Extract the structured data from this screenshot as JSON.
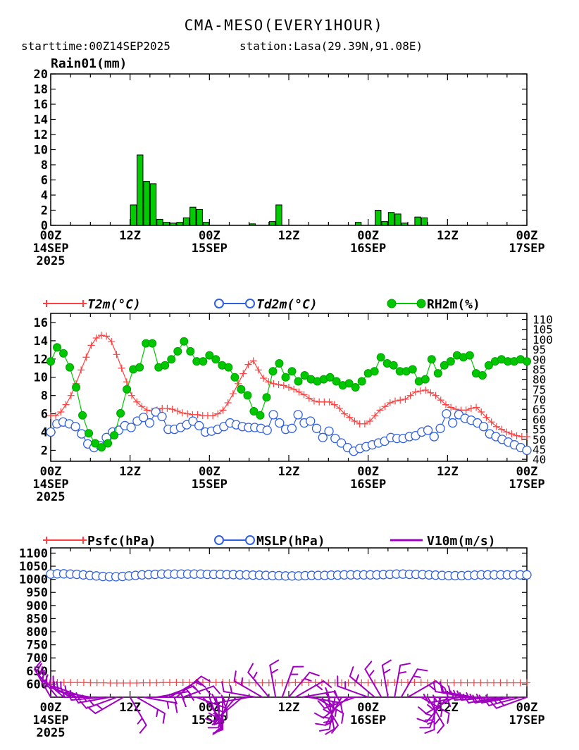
{
  "header": {
    "title": "CMA-MESO(EVERY1HOUR)",
    "starttime": "starttime:00Z14SEP2025",
    "station": "station:Lasa(29.39N,91.08E)"
  },
  "colors": {
    "rain": "#00cc00",
    "t2m": "#ff4040",
    "td2m": "#3060e0",
    "rh2m": "#00c800",
    "psfc": "#ff4040",
    "mslp": "#3060e0",
    "wind": "#a000c0"
  },
  "time_axis": {
    "ticks": [
      {
        "hour": 0,
        "lines": [
          "00Z",
          "14SEP",
          "2025"
        ]
      },
      {
        "hour": 12,
        "lines": [
          "12Z"
        ]
      },
      {
        "hour": 24,
        "lines": [
          "00Z",
          "15SEP"
        ]
      },
      {
        "hour": 36,
        "lines": [
          "12Z"
        ]
      },
      {
        "hour": 48,
        "lines": [
          "00Z",
          "16SEP"
        ]
      },
      {
        "hour": 60,
        "lines": [
          "12Z"
        ]
      },
      {
        "hour": 72,
        "lines": [
          "00Z",
          "17SEP"
        ]
      }
    ]
  },
  "chart_data": [
    {
      "type": "bar",
      "ylabel": "Rain01(mm)",
      "ylim": [
        0,
        20
      ],
      "yticks": [
        0,
        2,
        4,
        6,
        8,
        10,
        12,
        14,
        16,
        18,
        20
      ],
      "xlim": [
        0,
        72
      ],
      "x_hours": [
        12,
        13,
        14,
        15,
        16,
        17,
        18,
        19,
        20,
        21,
        22,
        23,
        24,
        30,
        33,
        34,
        46,
        49,
        50,
        51,
        52,
        53,
        55,
        56
      ],
      "values": [
        2.7,
        9.3,
        5.8,
        5.5,
        0.8,
        0.4,
        0.3,
        0.4,
        1.0,
        2.4,
        2.1,
        0.4,
        0.0,
        0.2,
        0.5,
        2.7,
        0.4,
        2.0,
        0.5,
        1.7,
        1.5,
        0.3,
        1.1,
        1.0
      ]
    },
    {
      "type": "line",
      "xlim": [
        0,
        72
      ],
      "left_axis": {
        "ylim": [
          0.8,
          17.0
        ],
        "ticks": [
          2,
          4,
          6,
          8,
          10,
          12,
          14,
          16
        ]
      },
      "right_axis": {
        "ylim": [
          39,
          113
        ],
        "ticks": [
          40,
          45,
          50,
          55,
          60,
          65,
          70,
          75,
          80,
          85,
          90,
          95,
          100,
          105,
          110
        ]
      },
      "series": [
        {
          "name": "T2m(°C)",
          "axis": "left",
          "marker": "plus",
          "values": [
            5.8,
            5.8,
            6.2,
            7.0,
            8.0,
            9.3,
            10.8,
            12.2,
            13.5,
            14.3,
            14.6,
            14.5,
            13.9,
            12.5,
            11.0,
            9.5,
            8.0,
            7.3,
            6.8,
            6.4,
            6.3,
            6.4,
            6.6,
            6.6,
            6.5,
            6.3,
            6.1,
            6.0,
            5.9,
            5.9,
            5.8,
            5.8,
            5.8,
            6.0,
            6.4,
            7.2,
            8.2,
            9.3,
            10.4,
            11.4,
            11.8,
            10.8,
            9.9,
            9.5,
            9.3,
            9.2,
            9.1,
            8.9,
            8.7,
            8.4,
            8.1,
            7.7,
            7.4,
            7.3,
            7.3,
            7.3,
            7.0,
            6.6,
            6.0,
            5.6,
            5.2,
            4.9,
            4.9,
            5.2,
            5.8,
            6.4,
            6.8,
            7.2,
            7.4,
            7.5,
            7.6,
            8.0,
            8.4,
            8.5,
            8.6,
            8.3,
            8.0,
            7.5,
            7.0,
            6.7,
            6.5,
            6.4,
            6.4,
            6.6,
            6.7,
            6.2,
            5.6,
            5.1,
            4.6,
            4.3,
            4.0,
            3.8,
            3.6,
            3.5,
            3.5
          ]
        },
        {
          "name": "Td2m(°C)",
          "axis": "left",
          "marker": "circle",
          "values": [
            4.0,
            4.9,
            5.1,
            4.9,
            4.6,
            3.8,
            2.7,
            2.3,
            2.5,
            3.4,
            4.0,
            4.2,
            4.7,
            4.5,
            5.2,
            5.6,
            5.0,
            6.2,
            5.7,
            4.3,
            4.3,
            4.5,
            4.8,
            5.2,
            4.7,
            4.0,
            4.1,
            4.3,
            4.6,
            5.0,
            4.8,
            4.6,
            4.5,
            4.5,
            4.4,
            4.2,
            5.9,
            5.0,
            4.3,
            4.4,
            5.9,
            5.0,
            5.2,
            4.4,
            3.4,
            4.1,
            3.3,
            2.8,
            2.3,
            1.9,
            2.2,
            2.4,
            2.6,
            2.8,
            3.0,
            3.4,
            3.3,
            3.3,
            3.5,
            3.6,
            4.0,
            4.2,
            3.5,
            4.4,
            6.0,
            5.0,
            5.9,
            5.5,
            5.3,
            5.0,
            4.6,
            3.8,
            3.5,
            3.2,
            2.9,
            2.6,
            2.3,
            2.0
          ]
        },
        {
          "name": "RH2m(%)",
          "axis": "right",
          "marker": "dot",
          "values": [
            89,
            96,
            93,
            86,
            76,
            62,
            53,
            48,
            46,
            48,
            52,
            63,
            75,
            85,
            86,
            98,
            98,
            86,
            87,
            90,
            94,
            99,
            94,
            89,
            89,
            92,
            90,
            87,
            86,
            81,
            75,
            72,
            64,
            62,
            71,
            84,
            88,
            81,
            84,
            79,
            82,
            80,
            79,
            80,
            81,
            79,
            77,
            78,
            76,
            79,
            83,
            84,
            91,
            88,
            87,
            84,
            84,
            85,
            79,
            80,
            90,
            83,
            87,
            89,
            92,
            91,
            92,
            83,
            82,
            87,
            89,
            90,
            89,
            89,
            90,
            89
          ]
        }
      ]
    },
    {
      "type": "line",
      "xlim": [
        0,
        72
      ],
      "ylim": [
        550,
        1120
      ],
      "yticks": [
        600,
        650,
        700,
        750,
        800,
        850,
        900,
        950,
        1000,
        1050,
        1100
      ],
      "series": [
        {
          "name": "Psfc(hPa)",
          "marker": "plus",
          "values": [
            606,
            606,
            606,
            606,
            606,
            606,
            605,
            605,
            605,
            604,
            604,
            604,
            604,
            604,
            605,
            605,
            605,
            606,
            606,
            606,
            606,
            606,
            606,
            606,
            606,
            606,
            606,
            606,
            606,
            605,
            605,
            605,
            605,
            605,
            605,
            605,
            605,
            606,
            606,
            606,
            606,
            606,
            605,
            605,
            605,
            605,
            605,
            605,
            605,
            605,
            605,
            605,
            606,
            606,
            606,
            606,
            606,
            605,
            605,
            605,
            605,
            605,
            605,
            605,
            605,
            605,
            605,
            605,
            605,
            605,
            605,
            605,
            605
          ]
        },
        {
          "name": "MSLP(hPa)",
          "marker": "circle",
          "values": [
            1020,
            1021,
            1021,
            1020,
            1019,
            1017,
            1015,
            1013,
            1011,
            1010,
            1010,
            1011,
            1013,
            1015,
            1017,
            1018,
            1019,
            1020,
            1020,
            1020,
            1020,
            1020,
            1020,
            1020,
            1019,
            1019,
            1019,
            1018,
            1018,
            1017,
            1017,
            1016,
            1016,
            1015,
            1014,
            1014,
            1013,
            1013,
            1013,
            1014,
            1015,
            1015,
            1015,
            1016,
            1016,
            1017,
            1017,
            1017,
            1017,
            1017,
            1017,
            1018,
            1019,
            1020,
            1020,
            1019,
            1019,
            1018,
            1017,
            1016,
            1015,
            1014,
            1014,
            1014,
            1015,
            1016,
            1017,
            1017,
            1017,
            1017,
            1017,
            1017,
            1017,
            1017
          ]
        },
        {
          "name": "V10m(m/s)",
          "marker": "barb",
          "barb_dirs": [
            330,
            320,
            310,
            300,
            290,
            290,
            280,
            270,
            265,
            260,
            250,
            240,
            150,
            120,
            100,
            90,
            80,
            70,
            60,
            50,
            70,
            90,
            110,
            140,
            160,
            170,
            180,
            200,
            220,
            230,
            260,
            280,
            300,
            320,
            350,
            20,
            40,
            60,
            80,
            100,
            120,
            150,
            170,
            190,
            210,
            230,
            250,
            270,
            290,
            310,
            330,
            350,
            10,
            30,
            60,
            90,
            120,
            150,
            180,
            200,
            220,
            240,
            260,
            280,
            280,
            270,
            265,
            265,
            260,
            260,
            260,
            255,
            250
          ]
        }
      ]
    }
  ]
}
